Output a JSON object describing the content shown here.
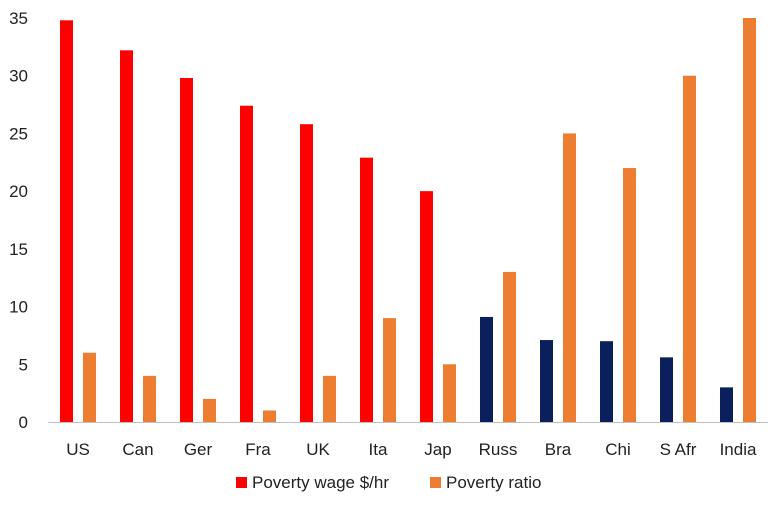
{
  "chart_data": {
    "type": "bar",
    "categories": [
      "US",
      "Can",
      "Ger",
      "Fra",
      "UK",
      "Ita",
      "Jap",
      "Russ",
      "Bra",
      "Chi",
      "S Afr",
      "India"
    ],
    "series": [
      {
        "name": "Poverty wage $/hr",
        "values": [
          34.8,
          32.2,
          29.8,
          27.4,
          25.8,
          22.9,
          20.0,
          9.1,
          7.1,
          7.0,
          5.6,
          3.0
        ],
        "colors": [
          "#ff0000",
          "#ff0000",
          "#ff0000",
          "#ff0000",
          "#ff0000",
          "#ff0000",
          "#ff0000",
          "#0a1f5c",
          "#0a1f5c",
          "#0a1f5c",
          "#0a1f5c",
          "#0a1f5c"
        ]
      },
      {
        "name": "Poverty ratio",
        "values": [
          6,
          4,
          2,
          1,
          4,
          9,
          5,
          13,
          25,
          22,
          30,
          35
        ],
        "color": "#ed7d31"
      }
    ],
    "ylim": [
      0,
      35
    ],
    "yticks": [
      0,
      5,
      10,
      15,
      20,
      25,
      30,
      35
    ],
    "grid": false,
    "legend": "bottom",
    "legend_swatches": [
      "#ff0000",
      "#ed7d31"
    ]
  }
}
